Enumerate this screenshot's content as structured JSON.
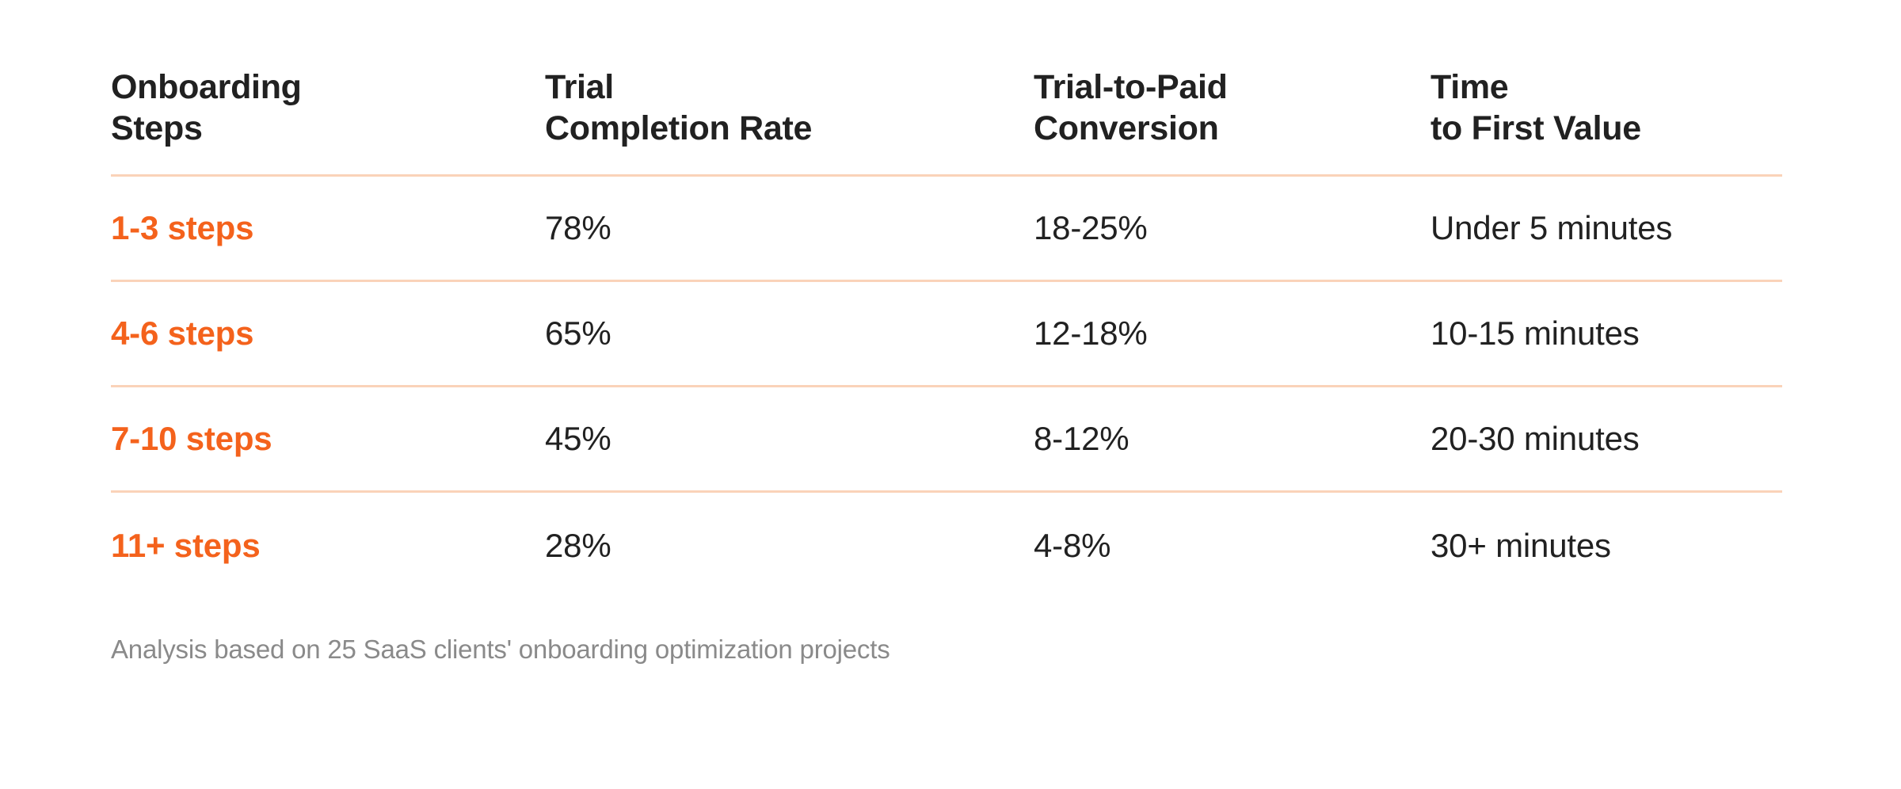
{
  "colors": {
    "background": "#FFFFFF",
    "accent_orange": "#F4621C",
    "divider_peach": "#FAD3B9",
    "text_dark": "#212121",
    "text_gray": "#8A8A8A"
  },
  "table": {
    "header_lines": [
      "Onboarding\nSteps",
      "Trial\nCompletion Rate",
      "Trial-to-Paid\nConversion",
      "Time\nto First Value"
    ]
  },
  "footnote": "Analysis based on 25 SaaS clients' onboarding optimization projects",
  "chart_data": {
    "type": "table",
    "title": "",
    "columns": [
      "Onboarding Steps",
      "Trial Completion Rate",
      "Trial-to-Paid Conversion",
      "Time to First Value"
    ],
    "rows": [
      [
        "1-3 steps",
        "78%",
        "18-25%",
        "Under 5 minutes"
      ],
      [
        "4-6 steps",
        "65%",
        "12-18%",
        "10-15 minutes"
      ],
      [
        "7-10 steps",
        "45%",
        "8-12%",
        "20-30 minutes"
      ],
      [
        "11+ steps",
        "28%",
        "4-8%",
        "30+ minutes"
      ]
    ]
  }
}
